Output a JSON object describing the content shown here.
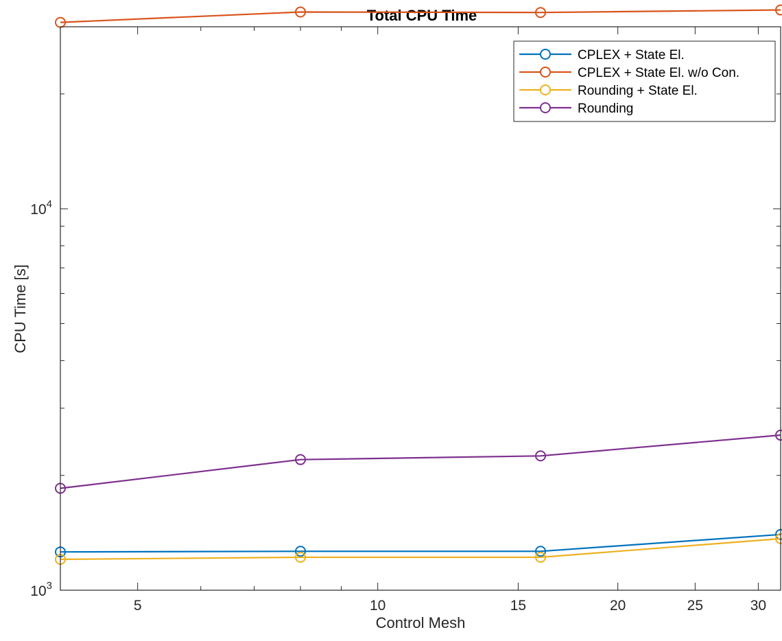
{
  "chart_data": {
    "type": "line",
    "title": "Total CPU Time",
    "xlabel": "Control Mesh",
    "ylabel": "CPU Time [s]",
    "x_scale": "log",
    "y_scale": "log",
    "xlim": [
      4,
      32
    ],
    "ylim": [
      1000,
      30000
    ],
    "x": [
      4,
      8,
      16,
      32
    ],
    "x_ticks": [
      5,
      10,
      15,
      20,
      25,
      30
    ],
    "x_tick_labels": [
      "5",
      "10",
      "15",
      "20",
      "25",
      "30"
    ],
    "y_major_ticks": [
      1000,
      10000
    ],
    "y_tick_labels": [
      {
        "base": "10",
        "exp": "3"
      },
      {
        "base": "10",
        "exp": "4"
      }
    ],
    "grid": false,
    "legend_position": "top-right",
    "marker": "circle",
    "series": [
      {
        "name": "CPLEX + State El.",
        "color": "#0072BD",
        "values": [
          1260,
          1265,
          1265,
          1400
        ]
      },
      {
        "name": "CPLEX + State El. w/o Con.",
        "color": "#D95319",
        "values": [
          30800,
          32800,
          32700,
          33200
        ]
      },
      {
        "name": "Rounding + State El.",
        "color": "#EDB120",
        "values": [
          1205,
          1220,
          1220,
          1365
        ]
      },
      {
        "name": "Rounding",
        "color": "#7E2F8E",
        "values": [
          1850,
          2200,
          2250,
          2550
        ]
      }
    ]
  }
}
